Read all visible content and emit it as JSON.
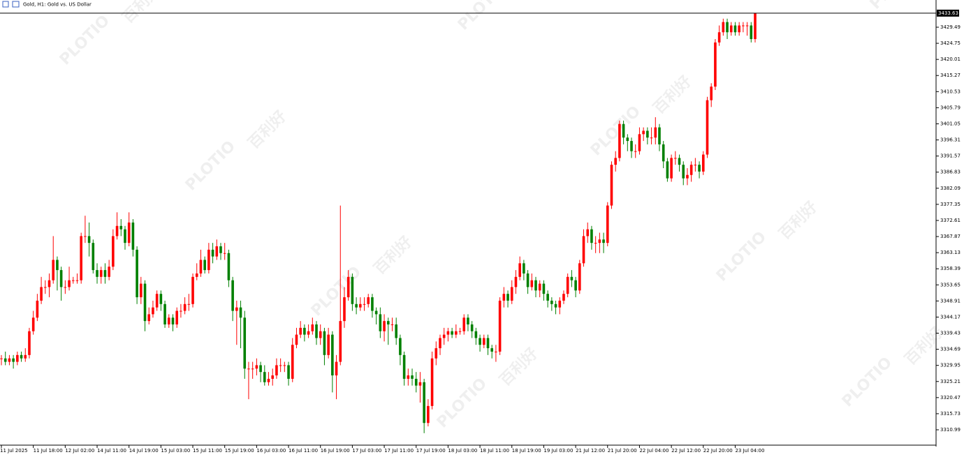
{
  "chart_data": {
    "type": "candlestick",
    "title": "Gold, H1:  Gold vs. US Dollar",
    "watermark": [
      "PLOTIO",
      "百利好"
    ],
    "up_color": "#ff0000",
    "down_color": "#008000",
    "ylim": [
      3306.68,
      3433.8
    ],
    "yticks": [
      3310.99,
      3315.73,
      3320.47,
      3325.21,
      3329.95,
      3334.69,
      3339.43,
      3344.17,
      3348.91,
      3353.65,
      3358.39,
      3363.13,
      3367.87,
      3372.61,
      3377.35,
      3382.09,
      3386.83,
      3391.57,
      3396.31,
      3401.05,
      3405.79,
      3410.53,
      3415.27,
      3420.01,
      3424.75,
      3429.49
    ],
    "categories": [
      "11 Jul 2025",
      null,
      null,
      null,
      null,
      null,
      null,
      null,
      "11 Jul 18:00",
      null,
      null,
      null,
      null,
      null,
      null,
      null,
      "12 Jul 02:00",
      null,
      null,
      null,
      null,
      null,
      null,
      null,
      "14 Jul 11:00",
      null,
      null,
      null,
      null,
      null,
      null,
      null,
      "14 Jul 19:00",
      null,
      null,
      null,
      null,
      null,
      null,
      null,
      "15 Jul 03:00",
      null,
      null,
      null,
      null,
      null,
      null,
      null,
      "15 Jul 11:00",
      null,
      null,
      null,
      null,
      null,
      null,
      null,
      "15 Jul 19:00",
      null,
      null,
      null,
      null,
      null,
      null,
      null,
      "16 Jul 03:00",
      null,
      null,
      null,
      null,
      null,
      null,
      null,
      "16 Jul 11:00",
      null,
      null,
      null,
      null,
      null,
      null,
      null,
      "16 Jul 19:00",
      null,
      null,
      null,
      null,
      null,
      null,
      null,
      "17 Jul 03:00",
      null,
      null,
      null,
      null,
      null,
      null,
      null,
      "17 Jul 11:00",
      null,
      null,
      null,
      null,
      null,
      null,
      null,
      "17 Jul 19:00",
      null,
      null,
      null,
      null,
      null,
      null,
      null,
      "18 Jul 03:00",
      null,
      null,
      null,
      null,
      null,
      null,
      null,
      "18 Jul 11:00",
      null,
      null,
      null,
      null,
      null,
      null,
      null,
      "18 Jul 19:00",
      null,
      null,
      null,
      null,
      null,
      null,
      null,
      "19 Jul 03:00",
      null,
      null,
      null,
      null,
      null,
      null,
      null,
      "21 Jul 12:00",
      null,
      null,
      null,
      null,
      null,
      null,
      null,
      "21 Jul 20:00",
      null,
      null,
      null,
      null,
      null,
      null,
      null,
      "22 Jul 04:00",
      null,
      null,
      null,
      null,
      null,
      null,
      null,
      "22 Jul 12:00",
      null,
      null,
      null,
      null,
      null,
      null,
      null,
      "22 Jul 20:00",
      null,
      null,
      null,
      null,
      null,
      null,
      null,
      "23 Jul 04:00",
      null,
      null,
      null,
      null,
      null
    ],
    "open": [
      3332,
      3332,
      3331,
      3332,
      3331,
      3333,
      3332,
      3333,
      3340,
      3344,
      3349,
      3353,
      3353,
      3355,
      3361,
      3358,
      3353,
      3353,
      3355,
      3355,
      3355,
      3368,
      3368,
      3366,
      3358,
      3356,
      3358,
      3356,
      3359,
      3368,
      3371,
      3370,
      3366,
      3372,
      3364,
      3350,
      3354,
      3343,
      3345,
      3347,
      3351,
      3348,
      3342,
      3344,
      3342,
      3346,
      3346,
      3348,
      3348,
      3356,
      3357,
      3361,
      3358,
      3364,
      3362,
      3365,
      3363,
      3363,
      3355,
      3346,
      3347,
      3344,
      3329,
      3329,
      3329,
      3330,
      3328,
      3325,
      3326,
      3327,
      3330,
      3330,
      3330,
      3326,
      3336,
      3339,
      3341,
      3339,
      3340,
      3342,
      3338,
      3340,
      3333,
      3339,
      3327,
      3331,
      3343,
      3350,
      3356,
      3348,
      3347,
      3348,
      3348,
      3350,
      3346,
      3345,
      3340,
      3343,
      3342,
      3342,
      3338,
      3333,
      3326,
      3327,
      3326,
      3324,
      3325,
      3313,
      3318,
      3332,
      3335,
      3338,
      3339,
      3340,
      3339,
      3340,
      3340,
      3344,
      3342,
      3340,
      3338,
      3336,
      3338,
      3335,
      3334,
      3334,
      3349,
      3351,
      3349,
      3353,
      3356,
      3360,
      3357,
      3353,
      3355,
      3352,
      3354,
      3351,
      3349,
      3348,
      3347,
      3349,
      3351,
      3356,
      3355,
      3352,
      3360,
      3368,
      3370,
      3366,
      3366,
      3367,
      3366,
      3377,
      3389,
      3391,
      3401,
      3397,
      3396,
      3393,
      3393,
      3398,
      3399,
      3397,
      3397,
      3400,
      3395,
      3390,
      3385,
      3391,
      3391,
      3389,
      3385,
      3386,
      3389,
      3389,
      3387,
      3392,
      3408,
      3412,
      3425,
      3428,
      3431,
      3428,
      3430,
      3428,
      3430,
      3430,
      3430,
      3426
    ],
    "high": [
      3333,
      3334,
      3333,
      3333,
      3334,
      3334,
      3335,
      3341,
      3346,
      3351,
      3356,
      3355,
      3357,
      3368,
      3362,
      3359,
      3355,
      3359,
      3356,
      3357,
      3369,
      3374,
      3372,
      3367,
      3360,
      3359,
      3360,
      3361,
      3370,
      3375,
      3373,
      3371,
      3375,
      3373,
      3365,
      3356,
      3355,
      3347,
      3349,
      3352,
      3352,
      3349,
      3345,
      3345,
      3347,
      3348,
      3350,
      3351,
      3357,
      3360,
      3364,
      3362,
      3366,
      3366,
      3367,
      3366,
      3366,
      3364,
      3356,
      3349,
      3349,
      3346,
      3331,
      3331,
      3332,
      3331,
      3330,
      3328,
      3329,
      3332,
      3332,
      3331,
      3331,
      3338,
      3341,
      3343,
      3342,
      3342,
      3344,
      3343,
      3342,
      3341,
      3341,
      3340,
      3333,
      3377,
      3353,
      3358,
      3357,
      3350,
      3350,
      3350,
      3351,
      3351,
      3347,
      3347,
      3345,
      3344,
      3344,
      3344,
      3339,
      3334,
      3329,
      3329,
      3328,
      3328,
      3326,
      3320,
      3334,
      3337,
      3339,
      3341,
      3341,
      3341,
      3342,
      3341,
      3345,
      3345,
      3343,
      3341,
      3339,
      3339,
      3339,
      3336,
      3336,
      3350,
      3353,
      3352,
      3355,
      3358,
      3362,
      3361,
      3358,
      3357,
      3356,
      3355,
      3355,
      3352,
      3350,
      3349,
      3350,
      3352,
      3357,
      3358,
      3356,
      3361,
      3370,
      3372,
      3371,
      3368,
      3369,
      3369,
      3378,
      3390,
      3393,
      3402,
      3402,
      3398,
      3397,
      3395,
      3400,
      3400,
      3400,
      3400,
      3403,
      3401,
      3396,
      3391,
      3392,
      3393,
      3392,
      3390,
      3388,
      3390,
      3391,
      3390,
      3393,
      3409,
      3413,
      3426,
      3430,
      3432,
      3432,
      3431,
      3431,
      3431,
      3431,
      3431,
      3431,
      3433.7
    ],
    "low": [
      3330,
      3330,
      3330,
      3329,
      3330,
      3331,
      3331,
      3332,
      3339,
      3343,
      3348,
      3351,
      3350,
      3354,
      3352,
      3349,
      3351,
      3352,
      3354,
      3354,
      3354,
      3366,
      3362,
      3357,
      3354,
      3354,
      3354,
      3355,
      3358,
      3367,
      3368,
      3364,
      3365,
      3362,
      3348,
      3348,
      3340,
      3342,
      3344,
      3346,
      3346,
      3341,
      3341,
      3340,
      3341,
      3344,
      3345,
      3346,
      3347,
      3355,
      3356,
      3357,
      3357,
      3360,
      3361,
      3361,
      3361,
      3353,
      3343,
      3336,
      3335,
      3326,
      3320,
      3326,
      3327,
      3325,
      3324,
      3324,
      3324,
      3326,
      3328,
      3328,
      3324,
      3325,
      3335,
      3338,
      3337,
      3338,
      3339,
      3336,
      3336,
      3330,
      3332,
      3322,
      3320,
      3330,
      3341,
      3349,
      3346,
      3345,
      3346,
      3346,
      3347,
      3344,
      3342,
      3338,
      3337,
      3336,
      3340,
      3336,
      3330,
      3324,
      3324,
      3324,
      3322,
      3319,
      3310,
      3312,
      3317,
      3330,
      3333,
      3336,
      3337,
      3338,
      3338,
      3339,
      3339,
      3340,
      3338,
      3336,
      3334,
      3335,
      3333,
      3332,
      3331,
      3333,
      3347,
      3347,
      3348,
      3351,
      3355,
      3355,
      3351,
      3352,
      3350,
      3350,
      3349,
      3347,
      3346,
      3345,
      3345,
      3348,
      3350,
      3353,
      3350,
      3351,
      3359,
      3366,
      3364,
      3363,
      3363,
      3363,
      3365,
      3376,
      3387,
      3390,
      3395,
      3393,
      3391,
      3391,
      3392,
      3396,
      3395,
      3395,
      3395,
      3393,
      3388,
      3384,
      3384,
      3389,
      3387,
      3383,
      3383,
      3384,
      3387,
      3385,
      3386,
      3391,
      3406,
      3411,
      3424,
      3427,
      3426,
      3427,
      3427,
      3427,
      3428,
      3427,
      3425,
      3425
    ],
    "close": [
      3332,
      3331,
      3332,
      3331,
      3333,
      3332,
      3333,
      3340,
      3344,
      3349,
      3353,
      3353,
      3355,
      3361,
      3358,
      3353,
      3353,
      3355,
      3355,
      3355,
      3368,
      3368,
      3366,
      3358,
      3356,
      3358,
      3356,
      3359,
      3368,
      3371,
      3370,
      3366,
      3372,
      3364,
      3350,
      3354,
      3343,
      3345,
      3347,
      3351,
      3348,
      3342,
      3344,
      3342,
      3346,
      3346,
      3348,
      3348,
      3356,
      3357,
      3361,
      3358,
      3364,
      3362,
      3365,
      3363,
      3363,
      3355,
      3346,
      3347,
      3344,
      3329,
      3329,
      3329,
      3330,
      3328,
      3325,
      3326,
      3327,
      3330,
      3330,
      3330,
      3326,
      3336,
      3339,
      3341,
      3339,
      3340,
      3342,
      3338,
      3340,
      3333,
      3339,
      3327,
      3331,
      3343,
      3350,
      3356,
      3348,
      3347,
      3348,
      3348,
      3350,
      3346,
      3345,
      3340,
      3343,
      3342,
      3342,
      3338,
      3333,
      3326,
      3327,
      3326,
      3324,
      3325,
      3313,
      3318,
      3332,
      3335,
      3338,
      3339,
      3340,
      3339,
      3340,
      3340,
      3344,
      3342,
      3340,
      3338,
      3336,
      3338,
      3335,
      3334,
      3334,
      3349,
      3351,
      3349,
      3353,
      3356,
      3360,
      3357,
      3353,
      3355,
      3352,
      3354,
      3351,
      3349,
      3348,
      3347,
      3349,
      3351,
      3356,
      3355,
      3352,
      3360,
      3368,
      3370,
      3366,
      3366,
      3367,
      3366,
      3377,
      3389,
      3391,
      3401,
      3397,
      3396,
      3393,
      3393,
      3398,
      3399,
      3397,
      3397,
      3400,
      3395,
      3390,
      3385,
      3391,
      3391,
      3389,
      3385,
      3386,
      3389,
      3389,
      3387,
      3392,
      3408,
      3412,
      3425,
      3428,
      3431,
      3428,
      3430,
      3428,
      3430,
      3430,
      3430,
      3426,
      3433.63
    ]
  }
}
